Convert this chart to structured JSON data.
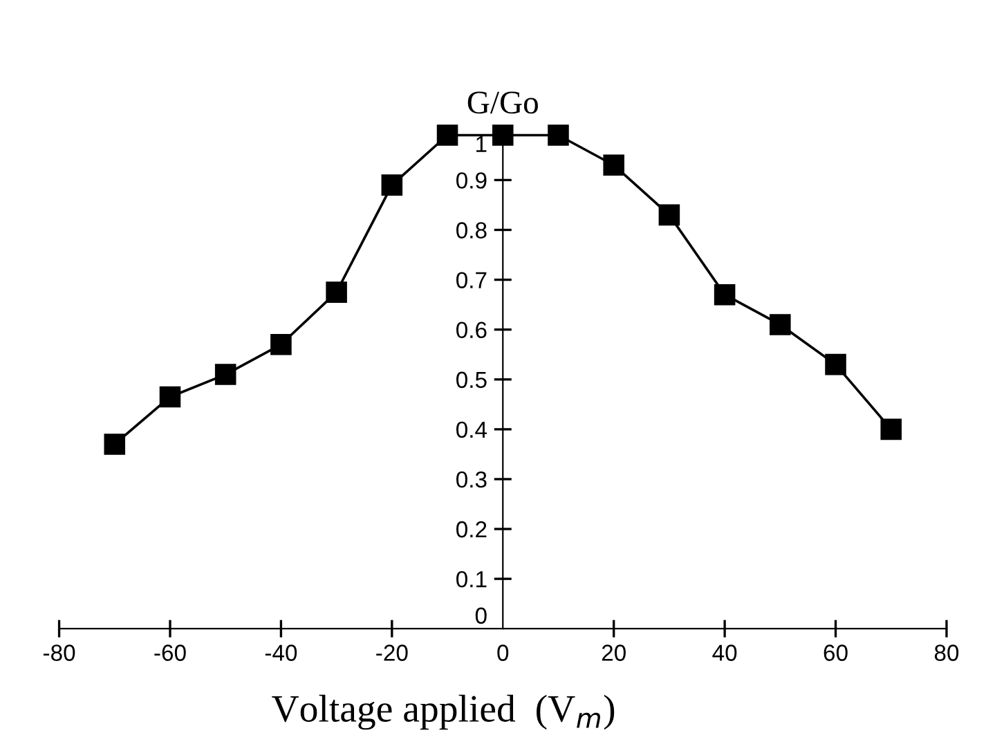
{
  "chart_data": {
    "type": "line",
    "xlabel": "Voltage applied  (V$_{m}$)",
    "ylabel": "G/Go",
    "x": [
      -70,
      -60,
      -50,
      -40,
      -30,
      -20,
      -10,
      0,
      10,
      20,
      30,
      40,
      50,
      60,
      70
    ],
    "series": [
      {
        "color": "#000000",
        "values": [
          0.37,
          0.465,
          0.51,
          0.57,
          0.675,
          0.89,
          0.99,
          0.99,
          0.99,
          0.93,
          0.83,
          0.67,
          0.61,
          0.53,
          0.4
        ]
      }
    ],
    "xlim": [
      -80,
      80
    ],
    "xticks": [
      -80,
      -60,
      -40,
      -20,
      0,
      20,
      40,
      60,
      80
    ],
    "ylim": [
      0,
      1
    ],
    "yticks": [
      0,
      0.1,
      0.2,
      0.3,
      0.4,
      0.5,
      0.6,
      0.7,
      0.8,
      0.9,
      1
    ],
    "marker": "square",
    "line_style": "solid",
    "grid": false,
    "legend": false
  }
}
